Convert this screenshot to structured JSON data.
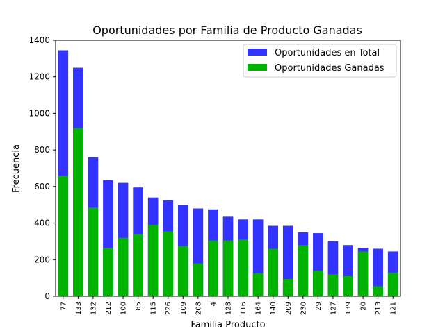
{
  "chart_data": {
    "type": "bar",
    "title": "Oportunidades por Familia de Producto Ganadas",
    "xlabel": "Familia Producto",
    "ylabel": "Frecuencia",
    "ylim": [
      0,
      1400
    ],
    "yticks": [
      "0",
      "200",
      "400",
      "600",
      "800",
      "1000",
      "1200",
      "1400"
    ],
    "grid": false,
    "legend_position": "top-right",
    "categories": [
      "77",
      "133",
      "132",
      "212",
      "100",
      "85",
      "115",
      "226",
      "109",
      "208",
      "4",
      "128",
      "116",
      "164",
      "140",
      "209",
      "230",
      "29",
      "127",
      "139",
      "20",
      "213",
      "121"
    ],
    "series": [
      {
        "name": "Oportunidades en Total",
        "color": "#3333ff",
        "values": [
          1345,
          1250,
          760,
          635,
          620,
          595,
          540,
          525,
          500,
          480,
          475,
          435,
          420,
          420,
          385,
          385,
          350,
          345,
          300,
          280,
          265,
          260,
          245
        ]
      },
      {
        "name": "Oportunidades Ganadas",
        "color": "#00b300",
        "values": [
          660,
          920,
          485,
          265,
          320,
          340,
          390,
          355,
          275,
          180,
          305,
          305,
          310,
          125,
          260,
          95,
          280,
          140,
          120,
          110,
          245,
          55,
          130
        ]
      }
    ]
  }
}
